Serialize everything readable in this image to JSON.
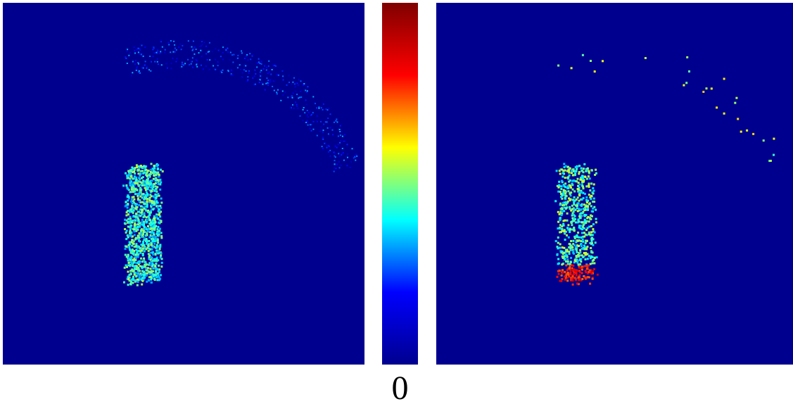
{
  "chart_data": [
    {
      "type": "heatmap",
      "panel": "left",
      "colormap": "jet",
      "background_color": "#00008f",
      "structures": [
        {
          "shape": "band",
          "x_range": [
            0.34,
            0.43
          ],
          "y_range": [
            0.45,
            0.77
          ],
          "level": 0.42
        },
        {
          "shape": "arc",
          "center": [
            0.5,
            0.62
          ],
          "radius": 0.48,
          "angle_range_deg": [
            20,
            110
          ],
          "level": 0.18
        }
      ]
    },
    {
      "type": "heatmap",
      "panel": "right",
      "colormap": "jet",
      "background_color": "#00008f",
      "structures": [
        {
          "shape": "band",
          "x_range": [
            0.34,
            0.44
          ],
          "y_range": [
            0.45,
            0.77
          ],
          "level": 0.45,
          "hot_bottom_level": 0.85
        },
        {
          "shape": "sparse-arc",
          "center": [
            0.5,
            0.62
          ],
          "radius": 0.48,
          "angle_range_deg": [
            20,
            110
          ],
          "level": 0.55
        }
      ]
    }
  ],
  "colorbar": {
    "colormap": "jet",
    "stops": [
      "#00008f",
      "#0000ff",
      "#00ffff",
      "#ffff00",
      "#ff0000",
      "#7f0000"
    ],
    "label": "0"
  }
}
